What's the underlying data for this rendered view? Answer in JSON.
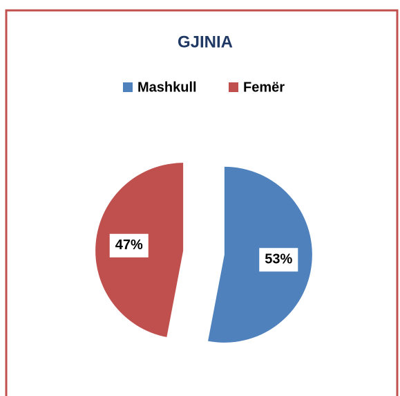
{
  "chart_data": {
    "type": "pie",
    "title": "GJINIA",
    "categories": [
      "Mashkull",
      "Femër"
    ],
    "values": [
      53,
      47
    ],
    "value_labels": [
      "53%",
      "47%"
    ],
    "colors": [
      "#4f81bd",
      "#c0504d"
    ],
    "legend": "top"
  }
}
